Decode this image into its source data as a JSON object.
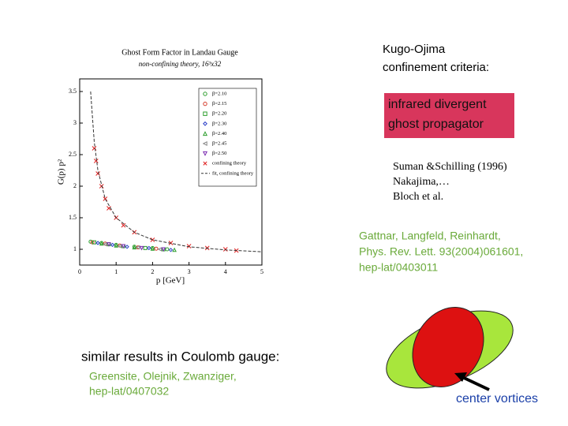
{
  "chart_data": {
    "type": "scatter",
    "title": "Ghost Form Factor in Landau Gauge",
    "subtitle": "non-confining theory, 16³x32",
    "x_label": "p [GeV]",
    "y_label": "G(p) p²",
    "xlim": [
      0,
      5
    ],
    "ylim": [
      0.75,
      3.7
    ],
    "xticks": [
      0,
      1,
      2,
      3,
      4,
      5
    ],
    "yticks": [
      1,
      1.5,
      2,
      2.5,
      3,
      3.5
    ],
    "series": [
      {
        "name": "β=2.10",
        "color": "#2e9e2e",
        "marker": "circle",
        "x": [
          0.3,
          0.6,
          1.0,
          1.5,
          2.0,
          2.4
        ],
        "values": [
          1.12,
          1.1,
          1.07,
          1.04,
          1.02,
          1.0
        ]
      },
      {
        "name": "β=2.15",
        "color": "#d43a2a",
        "marker": "circle",
        "x": [
          0.35,
          0.7,
          1.1,
          1.6,
          2.1
        ],
        "values": [
          1.11,
          1.09,
          1.06,
          1.03,
          1.01
        ]
      },
      {
        "name": "β=2.20",
        "color": "#2e9e2e",
        "marker": "square",
        "x": [
          0.4,
          0.8,
          1.2,
          1.8,
          2.3
        ],
        "values": [
          1.11,
          1.08,
          1.05,
          1.02,
          1.0
        ]
      },
      {
        "name": "β=2.30",
        "color": "#2a3ec8",
        "marker": "diamond",
        "x": [
          0.5,
          0.9,
          1.3,
          1.9,
          2.5
        ],
        "values": [
          1.1,
          1.07,
          1.04,
          1.02,
          0.99
        ]
      },
      {
        "name": "β=2.40",
        "color": "#2e9e2e",
        "marker": "triangle-up",
        "x": [
          0.6,
          1.0,
          1.5,
          2.0,
          2.6
        ],
        "values": [
          1.09,
          1.06,
          1.03,
          1.01,
          0.99
        ]
      },
      {
        "name": "β=2.45",
        "color": "#888888",
        "marker": "triangle-left",
        "x": [
          0.7,
          1.1,
          1.6,
          2.2
        ],
        "values": [
          1.08,
          1.05,
          1.03,
          1.0
        ]
      },
      {
        "name": "β=2.50",
        "color": "#7a2ab0",
        "marker": "triangle-down",
        "x": [
          0.8,
          1.2,
          1.7,
          2.3
        ],
        "values": [
          1.08,
          1.05,
          1.02,
          1.0
        ]
      },
      {
        "name": "confining theory",
        "color": "#e02020",
        "marker": "x",
        "x": [
          0.4,
          0.45,
          0.5,
          0.6,
          0.7,
          0.8,
          1.0,
          1.2,
          1.5,
          2.0,
          2.5,
          3.0,
          3.5,
          4.0,
          4.3
        ],
        "values": [
          2.6,
          2.4,
          2.2,
          2.0,
          1.8,
          1.65,
          1.5,
          1.38,
          1.27,
          1.15,
          1.1,
          1.05,
          1.02,
          1.0,
          0.98
        ]
      },
      {
        "name": "fit, confining theory",
        "color": "#333333",
        "marker": "line",
        "x": [
          0.3,
          0.4,
          0.5,
          0.7,
          1.0,
          1.5,
          2.0,
          3.0,
          4.0,
          5.0
        ],
        "values": [
          3.5,
          2.7,
          2.25,
          1.8,
          1.5,
          1.27,
          1.15,
          1.04,
          0.99,
          0.96
        ]
      }
    ]
  },
  "criteria": {
    "title_lines": [
      "Kugo-Ojima",
      "confinement criteria:"
    ],
    "box_lines": [
      "infrared divergent",
      "ghost propagator"
    ]
  },
  "references": [
    "Suman &Schilling (1996)",
    "Nakajima,…",
    "Bloch et al."
  ],
  "citation": [
    "Gattnar, Langfeld, Reinhardt,",
    "Phys. Rev. Lett. 93(2004)061601,",
    "hep-lat/0403011"
  ],
  "coulomb": {
    "heading": "similar results in Coulomb gauge:",
    "lines": [
      "Greensite, Olejnik, Zwanziger,",
      "hep-lat/0407032"
    ]
  },
  "vortex_label": "center vortices"
}
